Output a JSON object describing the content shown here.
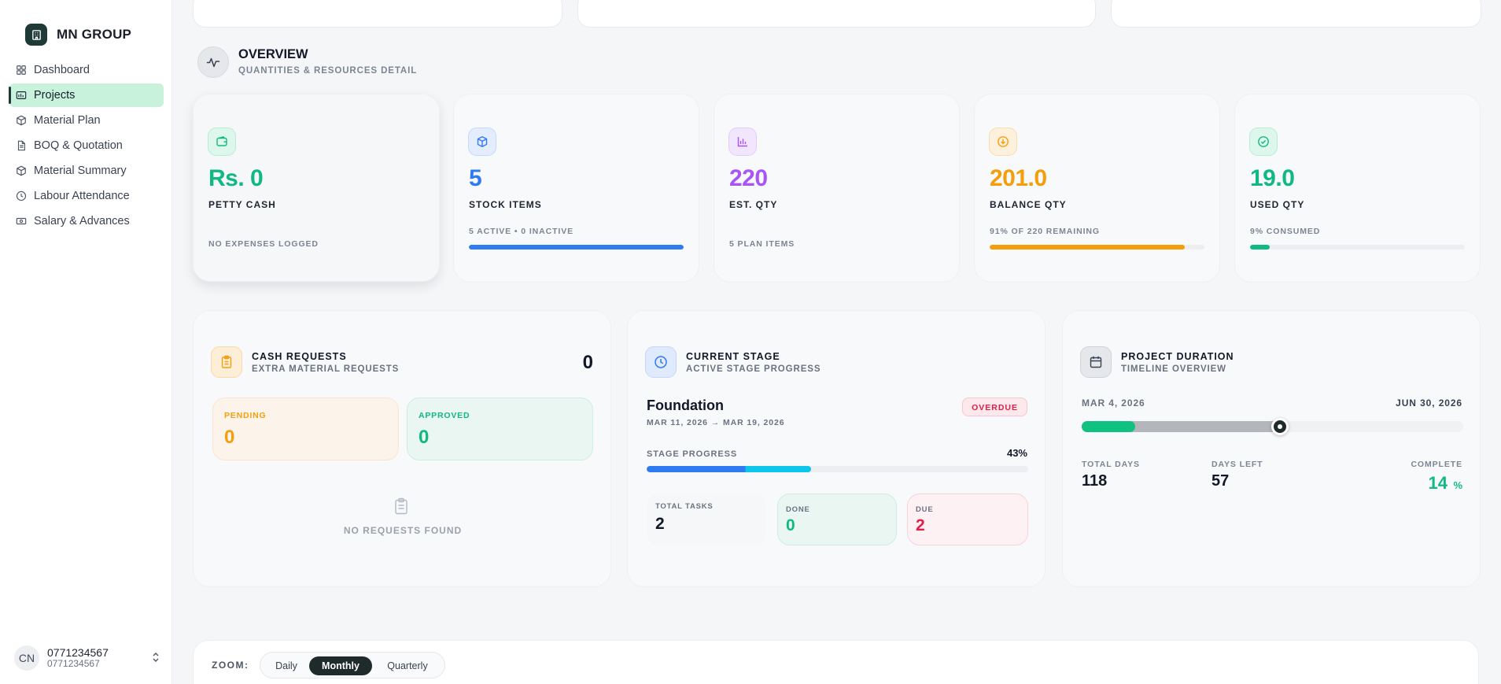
{
  "sidebar": {
    "brand": "MN GROUP",
    "items": [
      {
        "label": "Dashboard",
        "icon": "grid-icon",
        "active": false
      },
      {
        "label": "Projects",
        "icon": "folder-icon",
        "active": true
      },
      {
        "label": "Material Plan",
        "icon": "box-icon",
        "active": false
      },
      {
        "label": "BOQ & Quotation",
        "icon": "document-icon",
        "active": false
      },
      {
        "label": "Material Summary",
        "icon": "box-icon",
        "active": false
      },
      {
        "label": "Labour Attendance",
        "icon": "clock-icon",
        "active": false
      },
      {
        "label": "Salary & Advances",
        "icon": "cash-icon",
        "active": false
      }
    ],
    "user": {
      "initials": "CN",
      "name": "0771234567",
      "sub": "0771234567"
    }
  },
  "overview": {
    "title": "OVERVIEW",
    "subtitle": "QUANTITIES & RESOURCES DETAIL"
  },
  "stats": {
    "petty_cash": {
      "value": "Rs. 0",
      "label": "PETTY CASH",
      "sub": "NO EXPENSES LOGGED",
      "color": "#10b981"
    },
    "stock_items": {
      "value": "5",
      "label": "STOCK ITEMS",
      "sub": "5 ACTIVE • 0 INACTIVE",
      "progress": 1.0,
      "color": "#2f7bf2"
    },
    "est_qty": {
      "value": "220",
      "label": "EST. QTY",
      "sub": "5 PLAN ITEMS",
      "color": "#a855f7"
    },
    "balance_qty": {
      "value": "201.0",
      "label": "BALANCE QTY",
      "sub": "91% OF 220 REMAINING",
      "progress": 0.91,
      "color": "#f59e0b"
    },
    "used_qty": {
      "value": "19.0",
      "label": "USED QTY",
      "sub": "9% CONSUMED",
      "progress": 0.09,
      "color": "#10b981"
    }
  },
  "cash_requests": {
    "title": "CASH REQUESTS",
    "subtitle": "EXTRA MATERIAL REQUESTS",
    "count": "0",
    "pending_label": "PENDING",
    "pending_value": "0",
    "approved_label": "APPROVED",
    "approved_value": "0",
    "empty_text": "NO REQUESTS FOUND"
  },
  "current_stage": {
    "title": "CURRENT STAGE",
    "subtitle": "ACTIVE STAGE PROGRESS",
    "stage_name": "Foundation",
    "dates": "MAR 11, 2026 → MAR 19, 2026",
    "badge": "OVERDUE",
    "progress_label": "STAGE PROGRESS",
    "progress_text": "43%",
    "progress": 0.43,
    "total_tasks_label": "TOTAL TASKS",
    "total_tasks": "2",
    "done_label": "DONE",
    "done": "0",
    "due_label": "DUE",
    "due": "2"
  },
  "project_duration": {
    "title": "PROJECT DURATION",
    "subtitle": "TIMELINE OVERVIEW",
    "start": "MAR 4, 2026",
    "end": "JUN 30, 2026",
    "complete_progress": 0.14,
    "elapsed_progress": 0.52,
    "total_days_label": "TOTAL DAYS",
    "total_days": "118",
    "days_left_label": "DAYS LEFT",
    "days_left": "57",
    "complete_label": "COMPLETE",
    "complete_value": "14",
    "complete_unit": "%"
  },
  "timeline": {
    "zoom_label": "ZOOM:",
    "options": [
      "Daily",
      "Monthly",
      "Quarterly"
    ],
    "selected": "Monthly"
  }
}
